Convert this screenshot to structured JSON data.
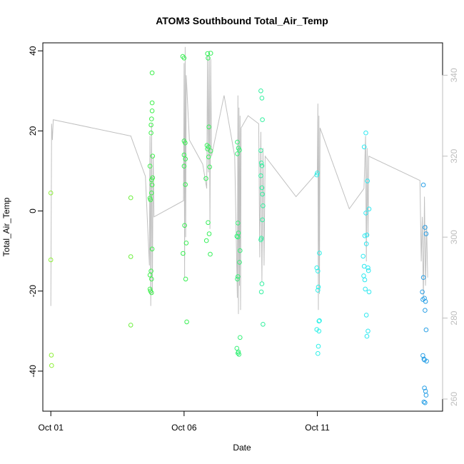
{
  "chart_data": {
    "type": "scatter",
    "title": "ATOM3 Southbound Total_Air_Temp",
    "xlabel": "Date",
    "ylabel": "Total_Air_Temp",
    "x_range_days": [
      -0.3,
      14.7
    ],
    "ylim": [
      -50,
      42
    ],
    "y2lim": [
      257,
      348
    ],
    "x_ticks": [
      {
        "day": 0,
        "label": "Oct 01"
      },
      {
        "day": 5,
        "label": "Oct 06"
      },
      {
        "day": 10,
        "label": "Oct 11"
      }
    ],
    "y_ticks": [
      -40,
      -20,
      0,
      20,
      40
    ],
    "y2_ticks": [
      260,
      280,
      300,
      320,
      340
    ],
    "grid": false,
    "points": [
      {
        "x": 0.0,
        "y": 4.5,
        "color": "#8ff03a"
      },
      {
        "x": 0.0,
        "y": -12.2,
        "color": "#8ff03a"
      },
      {
        "x": 0.02,
        "y": -36.0,
        "color": "#8ff03a"
      },
      {
        "x": 0.03,
        "y": -38.6,
        "color": "#8ff03a"
      },
      {
        "x": 3.0,
        "y": 3.3,
        "color": "#6ef040"
      },
      {
        "x": 3.0,
        "y": -11.4,
        "color": "#6ef040"
      },
      {
        "x": 3.0,
        "y": -28.5,
        "color": "#6ef040"
      },
      {
        "x": 3.8,
        "y": 34.5,
        "color": "#3ef04c"
      },
      {
        "x": 3.8,
        "y": 27.0,
        "color": "#3ef04c"
      },
      {
        "x": 3.8,
        "y": 25.0,
        "color": "#3ef04c"
      },
      {
        "x": 3.78,
        "y": 23.0,
        "color": "#3ef04c"
      },
      {
        "x": 3.76,
        "y": 21.5,
        "color": "#3ef04c"
      },
      {
        "x": 3.76,
        "y": 19.5,
        "color": "#3ef04c"
      },
      {
        "x": 3.82,
        "y": 13.7,
        "color": "#3ef04c"
      },
      {
        "x": 3.72,
        "y": 11.2,
        "color": "#3ef04c"
      },
      {
        "x": 3.82,
        "y": 8.3,
        "color": "#3ef04c"
      },
      {
        "x": 3.78,
        "y": 7.8,
        "color": "#3ef04c"
      },
      {
        "x": 3.8,
        "y": 6.5,
        "color": "#3ef04c"
      },
      {
        "x": 3.78,
        "y": 4.5,
        "color": "#3ef04c"
      },
      {
        "x": 3.72,
        "y": 3.2,
        "color": "#3ef04c"
      },
      {
        "x": 3.74,
        "y": 2.8,
        "color": "#3ef04c"
      },
      {
        "x": 3.8,
        "y": -9.5,
        "color": "#3ef04c"
      },
      {
        "x": 3.72,
        "y": -16.0,
        "color": "#3ef04c"
      },
      {
        "x": 3.76,
        "y": -15.0,
        "color": "#3ef04c"
      },
      {
        "x": 3.78,
        "y": -17.0,
        "color": "#3ef04c"
      },
      {
        "x": 3.72,
        "y": -19.5,
        "color": "#3ef04c"
      },
      {
        "x": 3.74,
        "y": -20.0,
        "color": "#3ef04c"
      },
      {
        "x": 3.78,
        "y": -20.4,
        "color": "#3ef04c"
      },
      {
        "x": 4.95,
        "y": 38.6,
        "color": "#38f052"
      },
      {
        "x": 5.0,
        "y": 38.2,
        "color": "#38f052"
      },
      {
        "x": 5.0,
        "y": 17.5,
        "color": "#38f052"
      },
      {
        "x": 5.04,
        "y": 17.0,
        "color": "#38f052"
      },
      {
        "x": 5.0,
        "y": 14.0,
        "color": "#38f052"
      },
      {
        "x": 5.05,
        "y": 13.0,
        "color": "#38f052"
      },
      {
        "x": 5.0,
        "y": 11.2,
        "color": "#38f052"
      },
      {
        "x": 5.05,
        "y": 6.6,
        "color": "#38f052"
      },
      {
        "x": 5.02,
        "y": -3.6,
        "color": "#38f052"
      },
      {
        "x": 5.08,
        "y": -8.0,
        "color": "#38f052"
      },
      {
        "x": 4.96,
        "y": -10.6,
        "color": "#38f052"
      },
      {
        "x": 5.06,
        "y": -17.0,
        "color": "#38f052"
      },
      {
        "x": 5.1,
        "y": -27.7,
        "color": "#38f052"
      },
      {
        "x": 5.88,
        "y": 39.3,
        "color": "#38f05c"
      },
      {
        "x": 6.0,
        "y": 39.4,
        "color": "#38f05c"
      },
      {
        "x": 5.9,
        "y": 38.2,
        "color": "#38f05c"
      },
      {
        "x": 5.93,
        "y": 21.0,
        "color": "#38f05c"
      },
      {
        "x": 5.86,
        "y": 16.4,
        "color": "#38f05c"
      },
      {
        "x": 5.92,
        "y": 16.0,
        "color": "#38f05c"
      },
      {
        "x": 5.88,
        "y": 15.5,
        "color": "#38f05c"
      },
      {
        "x": 6.0,
        "y": 15.0,
        "color": "#38f05c"
      },
      {
        "x": 5.96,
        "y": 11.0,
        "color": "#38f05c"
      },
      {
        "x": 5.92,
        "y": 13.5,
        "color": "#38f05c"
      },
      {
        "x": 5.82,
        "y": 8.1,
        "color": "#38f05c"
      },
      {
        "x": 5.9,
        "y": -2.9,
        "color": "#38f05c"
      },
      {
        "x": 5.94,
        "y": -5.7,
        "color": "#38f05c"
      },
      {
        "x": 5.84,
        "y": -7.4,
        "color": "#38f05c"
      },
      {
        "x": 5.98,
        "y": -10.8,
        "color": "#38f05c"
      },
      {
        "x": 7.0,
        "y": 17.2,
        "color": "#36f078"
      },
      {
        "x": 7.04,
        "y": 15.7,
        "color": "#36f078"
      },
      {
        "x": 7.08,
        "y": 15.2,
        "color": "#36f078"
      },
      {
        "x": 7.0,
        "y": 14.3,
        "color": "#36f078"
      },
      {
        "x": 7.02,
        "y": -3.0,
        "color": "#36f078"
      },
      {
        "x": 7.04,
        "y": -5.5,
        "color": "#36f078"
      },
      {
        "x": 6.98,
        "y": -6.3,
        "color": "#36f078"
      },
      {
        "x": 7.02,
        "y": -6.5,
        "color": "#36f078"
      },
      {
        "x": 7.1,
        "y": -9.9,
        "color": "#36f078"
      },
      {
        "x": 7.08,
        "y": -12.8,
        "color": "#36f078"
      },
      {
        "x": 7.02,
        "y": -16.4,
        "color": "#36f078"
      },
      {
        "x": 7.0,
        "y": -17.0,
        "color": "#36f078"
      },
      {
        "x": 7.1,
        "y": -31.6,
        "color": "#36f078"
      },
      {
        "x": 6.98,
        "y": -34.3,
        "color": "#36f078"
      },
      {
        "x": 7.02,
        "y": -35.5,
        "color": "#36f078"
      },
      {
        "x": 7.06,
        "y": -35.8,
        "color": "#36f078"
      },
      {
        "x": 7.04,
        "y": -35.2,
        "color": "#36f078"
      },
      {
        "x": 7.88,
        "y": 30.0,
        "color": "#34f0a0"
      },
      {
        "x": 7.92,
        "y": 28.2,
        "color": "#34f0a0"
      },
      {
        "x": 7.94,
        "y": 22.8,
        "color": "#34f0a0"
      },
      {
        "x": 7.88,
        "y": 15.1,
        "color": "#34f0a0"
      },
      {
        "x": 7.9,
        "y": 12.0,
        "color": "#34f0a0"
      },
      {
        "x": 7.92,
        "y": 11.3,
        "color": "#34f0a0"
      },
      {
        "x": 7.88,
        "y": 8.8,
        "color": "#34f0a0"
      },
      {
        "x": 7.92,
        "y": 5.8,
        "color": "#34f0a0"
      },
      {
        "x": 7.94,
        "y": 4.2,
        "color": "#34f0a0"
      },
      {
        "x": 7.96,
        "y": 1.3,
        "color": "#34f0a0"
      },
      {
        "x": 7.94,
        "y": -2.2,
        "color": "#34f0a0"
      },
      {
        "x": 7.9,
        "y": -6.8,
        "color": "#34f0a0"
      },
      {
        "x": 7.88,
        "y": -7.2,
        "color": "#34f0a0"
      },
      {
        "x": 7.92,
        "y": -18.2,
        "color": "#34f0a0"
      },
      {
        "x": 7.9,
        "y": -20.2,
        "color": "#34f0a0"
      },
      {
        "x": 7.96,
        "y": -28.3,
        "color": "#34f0a0"
      },
      {
        "x": 10.0,
        "y": 9.5,
        "color": "#2ef0e8"
      },
      {
        "x": 9.98,
        "y": 9.0,
        "color": "#2ef0e8"
      },
      {
        "x": 10.08,
        "y": -10.5,
        "color": "#2ef0e8"
      },
      {
        "x": 9.98,
        "y": -14.2,
        "color": "#2ef0e8"
      },
      {
        "x": 10.02,
        "y": -15.0,
        "color": "#2ef0e8"
      },
      {
        "x": 10.04,
        "y": -19.0,
        "color": "#2ef0e8"
      },
      {
        "x": 10.02,
        "y": -19.8,
        "color": "#2ef0e8"
      },
      {
        "x": 10.06,
        "y": -27.5,
        "color": "#2ef0e8"
      },
      {
        "x": 10.08,
        "y": -27.4,
        "color": "#2ef0e8"
      },
      {
        "x": 9.98,
        "y": -29.6,
        "color": "#2ef0e8"
      },
      {
        "x": 10.06,
        "y": -30.0,
        "color": "#2ef0e8"
      },
      {
        "x": 10.04,
        "y": -33.8,
        "color": "#2ef0e8"
      },
      {
        "x": 10.02,
        "y": -35.6,
        "color": "#2ef0e8"
      },
      {
        "x": 11.82,
        "y": 19.5,
        "color": "#2ee8f0"
      },
      {
        "x": 11.76,
        "y": 16.0,
        "color": "#2ee8f0"
      },
      {
        "x": 11.88,
        "y": 7.5,
        "color": "#2ee8f0"
      },
      {
        "x": 11.94,
        "y": 0.5,
        "color": "#2ee8f0"
      },
      {
        "x": 11.82,
        "y": -0.5,
        "color": "#2ee8f0"
      },
      {
        "x": 11.78,
        "y": -6.2,
        "color": "#2ee8f0"
      },
      {
        "x": 11.86,
        "y": -6.0,
        "color": "#2ee8f0"
      },
      {
        "x": 11.84,
        "y": -8.2,
        "color": "#2ee8f0"
      },
      {
        "x": 11.72,
        "y": -11.3,
        "color": "#2ee8f0"
      },
      {
        "x": 11.76,
        "y": -13.8,
        "color": "#2ee8f0"
      },
      {
        "x": 11.9,
        "y": -14.2,
        "color": "#2ee8f0"
      },
      {
        "x": 11.92,
        "y": -14.9,
        "color": "#2ee8f0"
      },
      {
        "x": 11.74,
        "y": -16.2,
        "color": "#2ee8f0"
      },
      {
        "x": 11.78,
        "y": -17.2,
        "color": "#2ee8f0"
      },
      {
        "x": 11.8,
        "y": -19.5,
        "color": "#2ee8f0"
      },
      {
        "x": 11.94,
        "y": -20.2,
        "color": "#2ee8f0"
      },
      {
        "x": 11.84,
        "y": -26.0,
        "color": "#2ee8f0"
      },
      {
        "x": 11.9,
        "y": -30.0,
        "color": "#2ee8f0"
      },
      {
        "x": 11.86,
        "y": -31.3,
        "color": "#2ee8f0"
      },
      {
        "x": 13.98,
        "y": 6.5,
        "color": "#2aa0e6"
      },
      {
        "x": 14.04,
        "y": -4.1,
        "color": "#2aa0e6"
      },
      {
        "x": 14.08,
        "y": -5.7,
        "color": "#2aa0e6"
      },
      {
        "x": 13.98,
        "y": -16.6,
        "color": "#2aa0e6"
      },
      {
        "x": 13.94,
        "y": -20.2,
        "color": "#2aa0e6"
      },
      {
        "x": 13.96,
        "y": -22.1,
        "color": "#2aa0e6"
      },
      {
        "x": 14.02,
        "y": -21.8,
        "color": "#2aa0e6"
      },
      {
        "x": 14.06,
        "y": -22.6,
        "color": "#2aa0e6"
      },
      {
        "x": 14.04,
        "y": -24.8,
        "color": "#2aa0e6"
      },
      {
        "x": 14.08,
        "y": -29.7,
        "color": "#2aa0e6"
      },
      {
        "x": 13.96,
        "y": -36.1,
        "color": "#2aa0e6"
      },
      {
        "x": 14.0,
        "y": -37.0,
        "color": "#2aa0e6"
      },
      {
        "x": 14.02,
        "y": -37.2,
        "color": "#2aa0e6"
      },
      {
        "x": 14.1,
        "y": -37.5,
        "color": "#2aa0e6"
      },
      {
        "x": 14.02,
        "y": -44.2,
        "color": "#2aa0e6"
      },
      {
        "x": 14.06,
        "y": -45.0,
        "color": "#2aa0e6"
      },
      {
        "x": 14.08,
        "y": -46.0,
        "color": "#2aa0e6"
      },
      {
        "x": 14.0,
        "y": -47.7,
        "color": "#2aa0e6"
      },
      {
        "x": 14.04,
        "y": -47.9,
        "color": "#2aa0e6"
      }
    ],
    "secondary_series": {
      "color": "#c0c0c0",
      "axis": "right",
      "x": [
        0.0,
        0.03,
        0.06,
        0.09,
        2.98,
        3.0,
        3.55,
        3.7,
        3.72,
        3.75,
        3.78,
        3.81,
        3.84,
        3.87,
        4.98,
        5.0,
        5.02,
        5.04,
        5.06,
        5.08,
        5.2,
        5.7,
        5.85,
        5.88,
        5.91,
        5.94,
        5.97,
        6.0,
        6.03,
        6.5,
        6.9,
        7.0,
        7.02,
        7.04,
        7.06,
        7.08,
        7.1,
        7.12,
        7.14,
        7.4,
        7.8,
        7.84,
        7.88,
        7.92,
        7.96,
        8.0,
        8.04,
        9.2,
        10.0,
        10.02,
        10.04,
        10.06,
        10.08,
        10.1,
        11.2,
        11.75,
        11.78,
        11.81,
        11.84,
        11.87,
        11.9,
        11.93,
        13.85,
        13.9,
        13.94,
        13.98,
        14.02,
        14.06,
        14.1,
        14.14
      ],
      "y": [
        283,
        328,
        324,
        329,
        325,
        325,
        315,
        293,
        325,
        283,
        328,
        286,
        320,
        305,
        309,
        343,
        290,
        347,
        300,
        340,
        324,
        318,
        312,
        345,
        316,
        346,
        302,
        344,
        320,
        335,
        320,
        285,
        335,
        281,
        332,
        288,
        330,
        282,
        327,
        330,
        328,
        295,
        326,
        289,
        322,
        293,
        320,
        310,
        316,
        333,
        282,
        330,
        286,
        327,
        307,
        312,
        318,
        325,
        294,
        322,
        300,
        320,
        314,
        294,
        305,
        285,
        310,
        288,
        303,
        290
      ]
    }
  }
}
